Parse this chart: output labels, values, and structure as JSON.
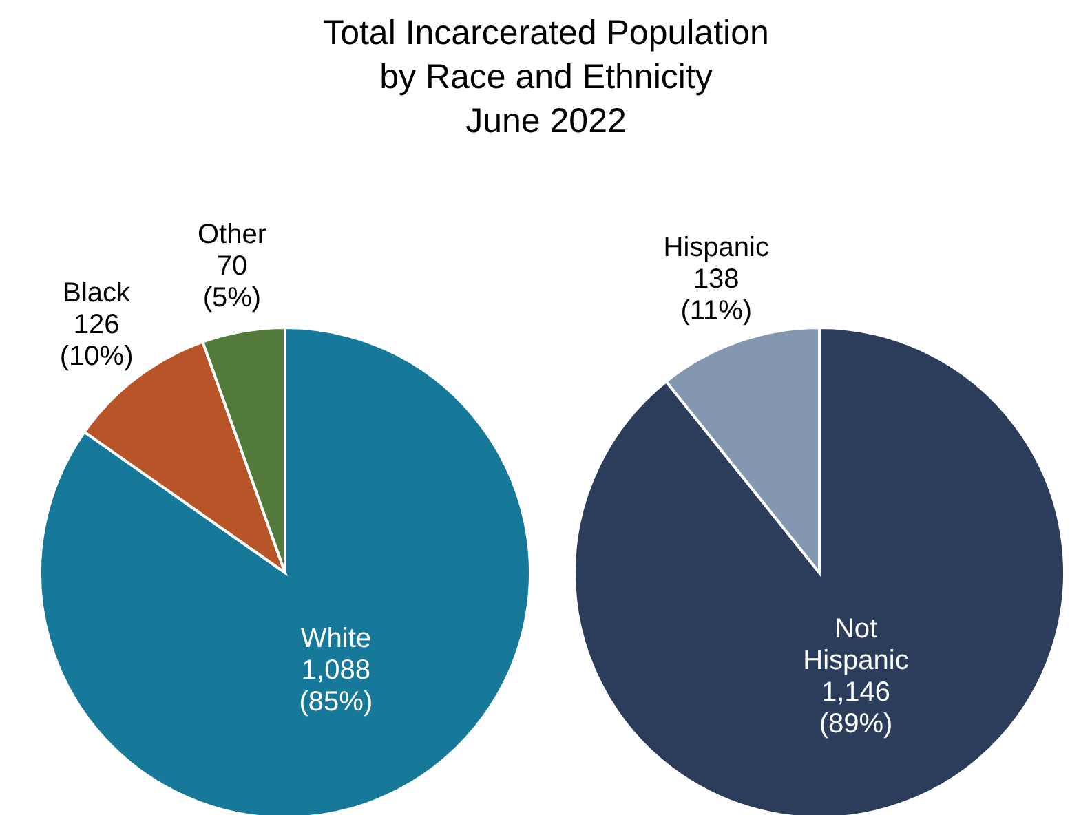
{
  "chart_data": [
    {
      "type": "pie",
      "title": "Total Incarcerated Population\nby Race and Ethnicity\nJune 2022",
      "categories": [
        "White",
        "Black",
        "Other"
      ],
      "values": [
        1088,
        126,
        70
      ],
      "colors": [
        "#17799a",
        "#b85528",
        "#527a3a"
      ],
      "value_labels": [
        "1,088 (85%)",
        "126 (10%)",
        "70 (5%)"
      ]
    },
    {
      "type": "pie",
      "categories": [
        "Not Hispanic",
        "Hispanic"
      ],
      "values": [
        1146,
        138
      ],
      "colors": [
        "#2b3d5b",
        "#8497b0"
      ],
      "value_labels": [
        "1,146 (89%)",
        "138 (11%)"
      ]
    }
  ]
}
